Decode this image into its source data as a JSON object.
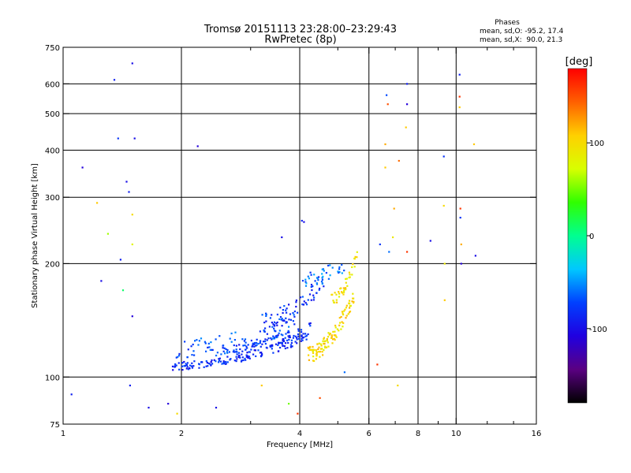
{
  "chart_data": {
    "type": "scatter",
    "title": "Tromsø 20151113 23:28:00–23:29:43",
    "subtitle": "RwPretec (8p)",
    "stats": {
      "heading": "Phases",
      "line1": "mean, sd,O: -95.2, 17.4",
      "line2": "mean, sd,X:  90.0, 21.3"
    },
    "xlabel": "Frequency [MHz]",
    "ylabel": "Stationary phase Virtual Height [km]",
    "x_scale": "log",
    "y_scale": "log",
    "xlim": [
      1,
      16
    ],
    "ylim": [
      75,
      750
    ],
    "x_ticks": [
      1,
      2,
      4,
      6,
      8,
      10,
      16
    ],
    "x_tick_labels": [
      "1",
      "2",
      "4",
      "6",
      "8",
      "10",
      "16"
    ],
    "x_minor_ticks": [
      3,
      5,
      7,
      9,
      12,
      14
    ],
    "x_grid": [
      2,
      4,
      6,
      8,
      10
    ],
    "y_ticks": [
      75,
      100,
      200,
      300,
      400,
      500,
      600,
      750
    ],
    "y_tick_labels": [
      "75",
      "100",
      "200",
      "300",
      "400",
      "500",
      "600",
      "750"
    ],
    "y_grid": [
      100,
      200,
      300,
      400,
      500,
      600
    ],
    "grid": true,
    "colorbar": {
      "label": "[deg]",
      "ticks": [
        100,
        0,
        -100
      ],
      "tick_labels": [
        "100",
        "0",
        "-100"
      ],
      "range": [
        -180,
        180
      ],
      "stops": [
        "#000000",
        "#5a0082",
        "#2000e0",
        "#0040ff",
        "#00c8ff",
        "#00ff90",
        "#30ff00",
        "#d8ff00",
        "#ffd000",
        "#ff6000",
        "#ff0000"
      ]
    },
    "series": [
      {
        "traces": [
          {
            "x0": 1.9,
            "x1": 4.2,
            "h0": 107,
            "h1": 128,
            "phase": -85,
            "n": 150,
            "spread": 0.025
          },
          {
            "x0": 2.5,
            "x1": 4.3,
            "h0": 118,
            "h1": 136,
            "phase": -80,
            "n": 90,
            "spread": 0.03
          },
          {
            "x0": 1.9,
            "x1": 4.0,
            "h0": 118,
            "h1": 140,
            "phase": -70,
            "n": 80,
            "spread": 0.06
          },
          {
            "x0": 3.2,
            "x1": 4.6,
            "h0": 140,
            "h1": 180,
            "phase": -80,
            "n": 70,
            "spread": 0.06
          },
          {
            "x0": 4.0,
            "x1": 5.2,
            "h0": 180,
            "h1": 200,
            "phase": -60,
            "n": 40,
            "spread": 0.05
          },
          {
            "x0": 4.2,
            "x1": 5.5,
            "h0": 115,
            "h1": 165,
            "phase": 100,
            "n": 110,
            "spread": 0.05
          },
          {
            "x0": 4.8,
            "x1": 5.6,
            "h0": 160,
            "h1": 210,
            "phase": 95,
            "n": 40,
            "spread": 0.04
          }
        ],
        "points": [
          {
            "x": 1.05,
            "y": 90,
            "phase": -90
          },
          {
            "x": 1.12,
            "y": 360,
            "phase": -110
          },
          {
            "x": 1.22,
            "y": 290,
            "phase": 110
          },
          {
            "x": 1.25,
            "y": 180,
            "phase": -100
          },
          {
            "x": 1.3,
            "y": 240,
            "phase": 60
          },
          {
            "x": 1.35,
            "y": 615,
            "phase": -90
          },
          {
            "x": 1.38,
            "y": 430,
            "phase": -80
          },
          {
            "x": 1.4,
            "y": 205,
            "phase": -90
          },
          {
            "x": 1.42,
            "y": 170,
            "phase": 10
          },
          {
            "x": 1.45,
            "y": 330,
            "phase": -100
          },
          {
            "x": 1.47,
            "y": 310,
            "phase": -90
          },
          {
            "x": 1.5,
            "y": 270,
            "phase": 100
          },
          {
            "x": 1.5,
            "y": 225,
            "phase": 80
          },
          {
            "x": 1.5,
            "y": 145,
            "phase": -110
          },
          {
            "x": 1.5,
            "y": 680,
            "phase": -100
          },
          {
            "x": 1.48,
            "y": 95,
            "phase": -90
          },
          {
            "x": 1.52,
            "y": 430,
            "phase": -100
          },
          {
            "x": 1.65,
            "y": 83,
            "phase": -100
          },
          {
            "x": 1.85,
            "y": 85,
            "phase": -110
          },
          {
            "x": 1.95,
            "y": 80,
            "phase": 100
          },
          {
            "x": 2.2,
            "y": 410,
            "phase": -110
          },
          {
            "x": 2.45,
            "y": 83,
            "phase": -100
          },
          {
            "x": 3.2,
            "y": 95,
            "phase": 110
          },
          {
            "x": 3.6,
            "y": 235,
            "phase": -100
          },
          {
            "x": 3.75,
            "y": 85,
            "phase": 50
          },
          {
            "x": 3.95,
            "y": 80,
            "phase": 160
          },
          {
            "x": 4.05,
            "y": 260,
            "phase": -90
          },
          {
            "x": 4.1,
            "y": 258,
            "phase": -100
          },
          {
            "x": 4.5,
            "y": 88,
            "phase": 150
          },
          {
            "x": 5.2,
            "y": 103,
            "phase": -60
          },
          {
            "x": 6.3,
            "y": 108,
            "phase": 160
          },
          {
            "x": 6.4,
            "y": 225,
            "phase": -80
          },
          {
            "x": 6.65,
            "y": 560,
            "phase": -70
          },
          {
            "x": 6.7,
            "y": 530,
            "phase": 150
          },
          {
            "x": 6.6,
            "y": 415,
            "phase": 120
          },
          {
            "x": 6.6,
            "y": 360,
            "phase": 110
          },
          {
            "x": 6.75,
            "y": 215,
            "phase": -60
          },
          {
            "x": 6.9,
            "y": 235,
            "phase": 90
          },
          {
            "x": 6.95,
            "y": 280,
            "phase": 120
          },
          {
            "x": 7.1,
            "y": 95,
            "phase": 100
          },
          {
            "x": 7.15,
            "y": 375,
            "phase": 140
          },
          {
            "x": 7.5,
            "y": 600,
            "phase": -90
          },
          {
            "x": 7.5,
            "y": 530,
            "phase": -110
          },
          {
            "x": 7.45,
            "y": 460,
            "phase": 110
          },
          {
            "x": 7.5,
            "y": 215,
            "phase": 160
          },
          {
            "x": 8.6,
            "y": 230,
            "phase": -100
          },
          {
            "x": 9.3,
            "y": 385,
            "phase": -80
          },
          {
            "x": 9.3,
            "y": 285,
            "phase": 100
          },
          {
            "x": 9.35,
            "y": 200,
            "phase": 90
          },
          {
            "x": 9.35,
            "y": 160,
            "phase": 110
          },
          {
            "x": 10.2,
            "y": 635,
            "phase": -90
          },
          {
            "x": 10.2,
            "y": 555,
            "phase": 160
          },
          {
            "x": 10.2,
            "y": 520,
            "phase": 110
          },
          {
            "x": 10.25,
            "y": 280,
            "phase": 160
          },
          {
            "x": 10.25,
            "y": 265,
            "phase": -80
          },
          {
            "x": 10.3,
            "y": 225,
            "phase": 120
          },
          {
            "x": 10.3,
            "y": 200,
            "phase": -110
          },
          {
            "x": 11.1,
            "y": 415,
            "phase": 110
          },
          {
            "x": 11.2,
            "y": 210,
            "phase": -100
          }
        ]
      }
    ]
  }
}
